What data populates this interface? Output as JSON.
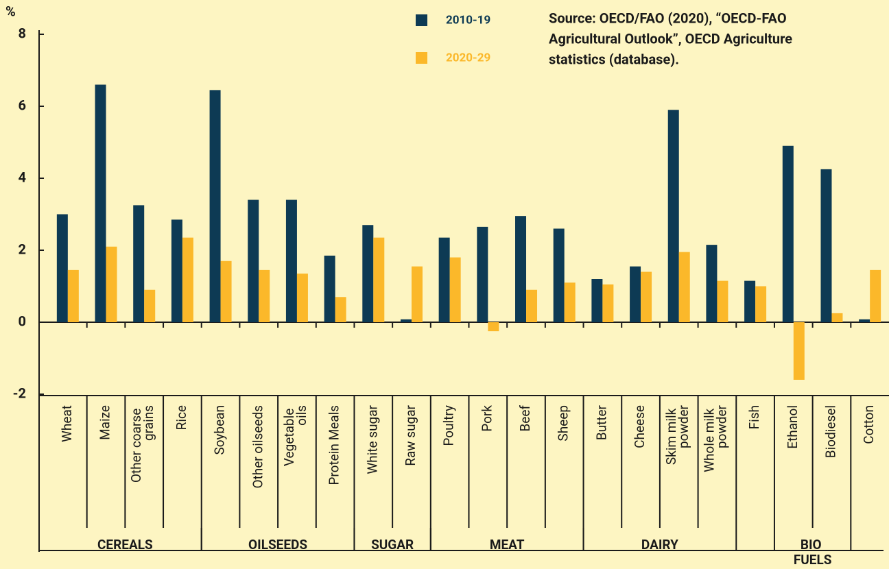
{
  "chart_data": {
    "type": "bar",
    "y_axis_label": "%",
    "source": [
      "Source: OECD/FAO (2020), “OECD-FAO",
      "Agricultural Outlook”, OECD Agriculture",
      "statistics (database)."
    ],
    "categories": [
      "Wheat",
      "Maize",
      "Other coarse grains",
      "Rice",
      "Soybean",
      "Other oilseeds",
      "Vegetable oils",
      "Protein Meals",
      "White sugar",
      "Raw sugar",
      "Poultry",
      "Pork",
      "Beef",
      "Sheep",
      "Butter",
      "Cheese",
      "Skim milk powder",
      "Whole milk powder",
      "Fish",
      "Ethanol",
      "Biodiesel",
      "Cotton"
    ],
    "category_groups": [
      "CEREALS",
      "CEREALS",
      "CEREALS",
      "CEREALS",
      "OILSEEDS",
      "OILSEEDS",
      "OILSEEDS",
      "OILSEEDS",
      "SUGAR",
      "SUGAR",
      "MEAT",
      "MEAT",
      "MEAT",
      "MEAT",
      "DAIRY",
      "DAIRY",
      "DAIRY",
      "DAIRY",
      null,
      "BIO FUELS",
      "BIO FUELS",
      null
    ],
    "series": [
      {
        "name": "2010-19",
        "color": "#0d3a54",
        "values": [
          3.0,
          6.6,
          3.25,
          2.85,
          6.45,
          3.4,
          3.4,
          1.85,
          2.7,
          0.08,
          2.35,
          2.65,
          2.95,
          2.6,
          1.2,
          1.55,
          5.9,
          2.15,
          1.15,
          4.9,
          4.25,
          0.08
        ]
      },
      {
        "name": "2020-29",
        "color": "#fbb82a",
        "values": [
          1.45,
          2.1,
          0.9,
          2.35,
          1.7,
          1.45,
          1.35,
          0.7,
          2.35,
          1.55,
          1.8,
          -0.25,
          0.9,
          1.1,
          1.05,
          1.4,
          1.95,
          1.15,
          1.0,
          -1.6,
          0.25,
          1.45
        ]
      }
    ],
    "ylim": [
      -2,
      8
    ],
    "yticks": [
      -2,
      0,
      2,
      4,
      6,
      8
    ]
  }
}
